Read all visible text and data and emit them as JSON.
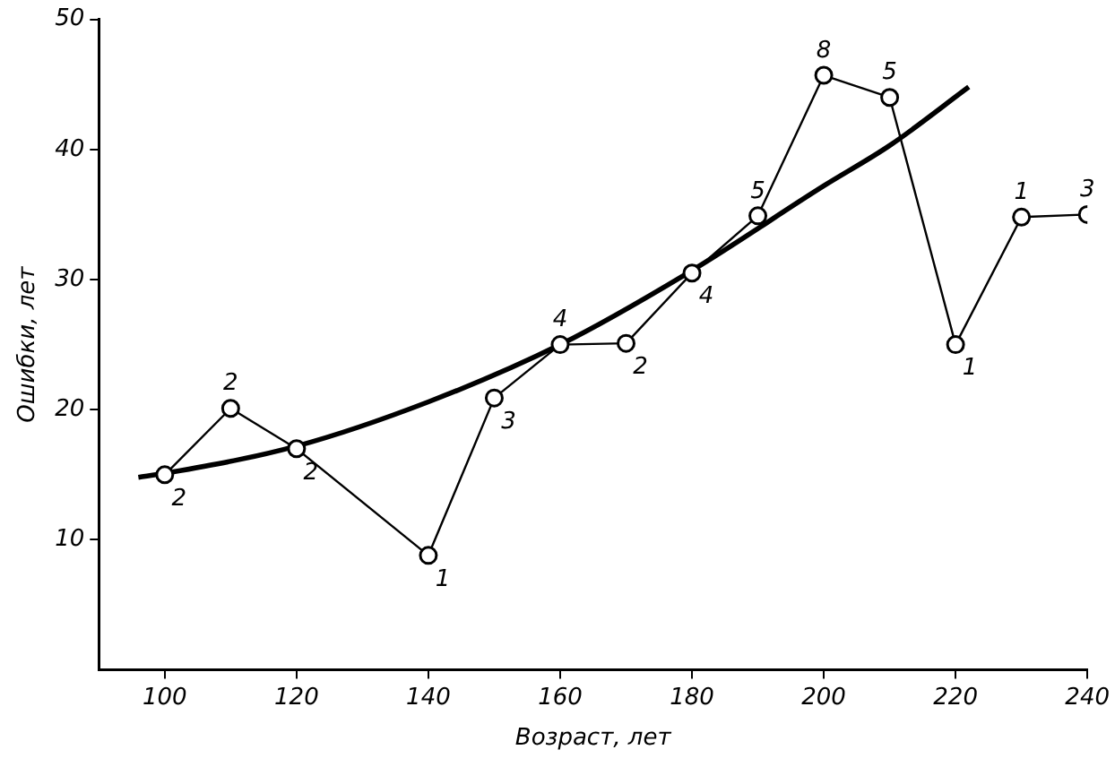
{
  "chart_data": {
    "type": "line",
    "xlabel": "Возраст, лет",
    "ylabel": "Ошибки, лет",
    "xlim": [
      90,
      240
    ],
    "xticks": [
      100,
      120,
      140,
      160,
      180,
      200,
      220,
      240
    ],
    "ylim": [
      0,
      50
    ],
    "yticks": [
      10,
      20,
      30,
      40,
      50
    ],
    "grid": false,
    "legend": false,
    "annotations": [
      {
        "text": "2",
        "x": 100,
        "y": 15
      },
      {
        "text": "2",
        "x": 110,
        "y": 20.1
      },
      {
        "text": "2",
        "x": 120,
        "y": 17
      },
      {
        "text": "1",
        "x": 140,
        "y": 8.8
      },
      {
        "text": "3",
        "x": 150,
        "y": 20.9
      },
      {
        "text": "4",
        "x": 160,
        "y": 25
      },
      {
        "text": "2",
        "x": 170,
        "y": 25.1
      },
      {
        "text": "4",
        "x": 180,
        "y": 30.5
      },
      {
        "text": "5",
        "x": 190,
        "y": 34.9
      },
      {
        "text": "8",
        "x": 200,
        "y": 45.7
      },
      {
        "text": "5",
        "x": 210,
        "y": 44
      },
      {
        "text": "1",
        "x": 220,
        "y": 25
      },
      {
        "text": "1",
        "x": 230,
        "y": 34.8
      },
      {
        "text": "3",
        "x": 240,
        "y": 35
      }
    ],
    "series": [
      {
        "color": "#000000",
        "marker": "circle",
        "x": [
          100,
          110,
          120,
          140,
          150,
          160,
          170,
          180,
          190,
          200,
          210,
          220,
          230,
          240
        ],
        "values": [
          15,
          20.1,
          17,
          8.8,
          20.9,
          25,
          25.1,
          30.5,
          34.9,
          45.7,
          44,
          25,
          34.8,
          35
        ]
      },
      {
        "color": "#000000",
        "marker": "none",
        "x": [
          96,
          100,
          120,
          140,
          160,
          180,
          200,
          210,
          222
        ],
        "values": [
          14.8,
          15.1,
          17.2,
          20.6,
          25,
          30.7,
          37.2,
          40.3,
          44.8
        ]
      }
    ]
  }
}
